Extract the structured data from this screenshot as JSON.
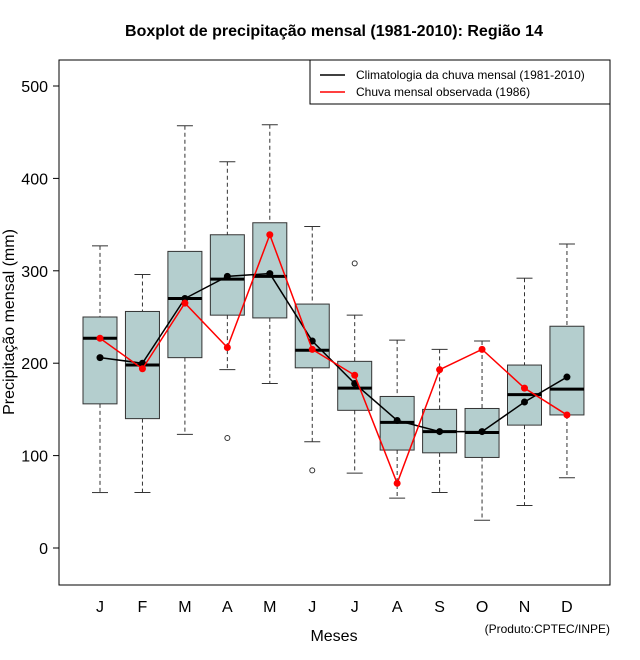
{
  "chart_data": {
    "type": "boxplot",
    "title": "Boxplot de precipitação mensal (1981-2010): Região 14",
    "xlabel": "Meses",
    "ylabel": "Precipitação mensal (mm)",
    "ylim": [
      -40,
      520
    ],
    "yticks": [
      0,
      100,
      200,
      300,
      400,
      500
    ],
    "categories": [
      "J",
      "F",
      "M",
      "A",
      "M",
      "J",
      "J",
      "A",
      "S",
      "O",
      "N",
      "D"
    ],
    "boxes": [
      {
        "whisker_low": 60,
        "q1": 156,
        "median": 227,
        "q3": 250,
        "whisker_high": 327,
        "outliers": []
      },
      {
        "whisker_low": 60,
        "q1": 140,
        "median": 198,
        "q3": 256,
        "whisker_high": 296,
        "outliers": []
      },
      {
        "whisker_low": 123,
        "q1": 206,
        "median": 270,
        "q3": 321,
        "whisker_high": 457,
        "outliers": []
      },
      {
        "whisker_low": 193,
        "q1": 252,
        "median": 291,
        "q3": 339,
        "whisker_high": 418,
        "outliers": [
          119
        ]
      },
      {
        "whisker_low": 178,
        "q1": 249,
        "median": 294,
        "q3": 352,
        "whisker_high": 458,
        "outliers": []
      },
      {
        "whisker_low": 115,
        "q1": 195,
        "median": 214,
        "q3": 264,
        "whisker_high": 348,
        "outliers": [
          84
        ]
      },
      {
        "whisker_low": 81,
        "q1": 149,
        "median": 173,
        "q3": 202,
        "whisker_high": 252,
        "outliers": [
          308
        ]
      },
      {
        "whisker_low": 54,
        "q1": 106,
        "median": 136,
        "q3": 164,
        "whisker_high": 225,
        "outliers": []
      },
      {
        "whisker_low": 60,
        "q1": 103,
        "median": 126,
        "q3": 150,
        "whisker_high": 215,
        "outliers": []
      },
      {
        "whisker_low": 30,
        "q1": 98,
        "median": 125,
        "q3": 151,
        "whisker_high": 224,
        "outliers": []
      },
      {
        "whisker_low": 46,
        "q1": 133,
        "median": 166,
        "q3": 198,
        "whisker_high": 292,
        "outliers": []
      },
      {
        "whisker_low": 76,
        "q1": 144,
        "median": 172,
        "q3": 240,
        "whisker_high": 329,
        "outliers": []
      }
    ],
    "series": [
      {
        "name": "Climatologia da chuva mensal (1981-2010)",
        "color": "#000000",
        "values": [
          206,
          200,
          270,
          294,
          297,
          224,
          178,
          138,
          126,
          126,
          158,
          185
        ]
      },
      {
        "name": "Chuva mensal observada (1986)",
        "color": "#ff0000",
        "values": [
          227,
          194,
          265,
          217,
          339,
          215,
          187,
          70,
          193,
          215,
          173,
          144
        ]
      }
    ],
    "legend_position": "top-right",
    "box_fill": "#b4cece",
    "credit": "(Produto:CPTEC/INPE)"
  }
}
